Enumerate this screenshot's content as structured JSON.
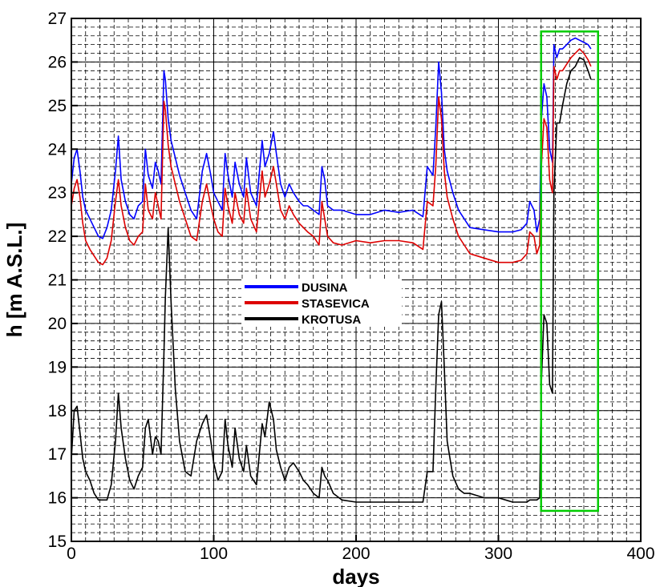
{
  "chart_data": {
    "type": "line",
    "title": "",
    "xlabel": "days",
    "ylabel": "h [m A.S.L.]",
    "xlim": [
      0,
      400
    ],
    "ylim": [
      15,
      27
    ],
    "xticks": [
      0,
      100,
      200,
      300,
      400
    ],
    "yticks": [
      15,
      16,
      17,
      18,
      19,
      20,
      21,
      22,
      23,
      24,
      25,
      26,
      27
    ],
    "x_minor_step": 10,
    "y_minor_step": 0.2,
    "grid": true,
    "legend_position": "center-left",
    "highlight_box": {
      "x": [
        330,
        370
      ],
      "y": [
        15.7,
        26.7
      ],
      "color": "#00cc00"
    },
    "series": [
      {
        "name": "DUSINA",
        "color": "#0000ff",
        "x": [
          0,
          2,
          4,
          6,
          8,
          10,
          13,
          16,
          19,
          22,
          25,
          28,
          31,
          33,
          35,
          38,
          41,
          44,
          47,
          50,
          52,
          54,
          57,
          59,
          61,
          63,
          65,
          66,
          68,
          70,
          73,
          76,
          80,
          84,
          88,
          92,
          95,
          98,
          100,
          103,
          106,
          108,
          110,
          113,
          115,
          118,
          121,
          123,
          126,
          130,
          134,
          136,
          139,
          142,
          144,
          147,
          150,
          153,
          156,
          160,
          163,
          166,
          170,
          174,
          176,
          178,
          180,
          184,
          190,
          200,
          210,
          220,
          230,
          240,
          247,
          250,
          254,
          256,
          258,
          260,
          262,
          264,
          268,
          272,
          276,
          280,
          290,
          300,
          310,
          316,
          320,
          322,
          325,
          327,
          329,
          330,
          332,
          334,
          336,
          338,
          339,
          341,
          343,
          345,
          348,
          351,
          354,
          357,
          360,
          363,
          365
        ],
        "values": [
          23.2,
          23.8,
          24.0,
          23.5,
          22.9,
          22.6,
          22.4,
          22.2,
          22.0,
          21.95,
          22.2,
          22.6,
          23.5,
          24.3,
          23.3,
          22.8,
          22.5,
          22.4,
          22.7,
          22.8,
          24.0,
          23.4,
          23.1,
          23.7,
          23.5,
          23.2,
          25.8,
          25.6,
          24.7,
          24.2,
          23.8,
          23.4,
          23.0,
          22.6,
          22.4,
          23.5,
          23.9,
          23.4,
          23.0,
          22.8,
          22.6,
          23.9,
          23.4,
          22.9,
          23.7,
          23.2,
          22.9,
          23.8,
          23.0,
          22.7,
          24.2,
          23.6,
          23.9,
          24.4,
          23.9,
          23.2,
          22.9,
          23.2,
          23.0,
          22.8,
          22.7,
          22.7,
          22.6,
          22.5,
          23.6,
          23.3,
          22.7,
          22.6,
          22.6,
          22.5,
          22.5,
          22.6,
          22.55,
          22.6,
          22.45,
          23.6,
          23.4,
          24.5,
          26.0,
          25.3,
          24.0,
          23.5,
          23.0,
          22.6,
          22.4,
          22.2,
          22.15,
          22.1,
          22.1,
          22.15,
          22.3,
          22.8,
          22.6,
          22.1,
          22.4,
          24.6,
          25.5,
          25.2,
          24.0,
          23.7,
          26.4,
          26.1,
          26.3,
          26.3,
          26.4,
          26.5,
          26.55,
          26.5,
          26.45,
          26.4,
          26.3
        ]
      },
      {
        "name": "STASEVICA",
        "color": "#dd0000",
        "x": [
          0,
          2,
          4,
          6,
          8,
          10,
          13,
          16,
          19,
          22,
          25,
          28,
          31,
          33,
          35,
          38,
          41,
          44,
          47,
          50,
          52,
          54,
          57,
          59,
          61,
          63,
          65,
          66,
          68,
          70,
          73,
          76,
          80,
          84,
          88,
          92,
          95,
          98,
          100,
          103,
          106,
          108,
          110,
          113,
          115,
          118,
          121,
          123,
          126,
          130,
          134,
          136,
          139,
          142,
          144,
          147,
          150,
          153,
          156,
          160,
          163,
          166,
          170,
          174,
          176,
          178,
          180,
          184,
          190,
          200,
          210,
          220,
          230,
          240,
          247,
          250,
          254,
          256,
          258,
          260,
          262,
          264,
          268,
          272,
          276,
          280,
          290,
          300,
          310,
          316,
          320,
          322,
          325,
          327,
          329,
          330,
          332,
          334,
          336,
          338,
          339,
          341,
          343,
          345,
          348,
          351,
          354,
          357,
          360,
          363,
          365
        ],
        "values": [
          22.7,
          23.1,
          23.3,
          22.9,
          22.3,
          21.9,
          21.7,
          21.55,
          21.4,
          21.35,
          21.5,
          21.9,
          22.8,
          23.3,
          22.7,
          22.2,
          21.9,
          21.8,
          22.0,
          22.1,
          23.2,
          22.6,
          22.4,
          23.0,
          22.7,
          22.4,
          25.1,
          24.9,
          24.1,
          23.6,
          23.2,
          22.8,
          22.4,
          22.0,
          21.9,
          22.8,
          23.2,
          22.7,
          22.4,
          22.1,
          22.0,
          23.1,
          22.7,
          22.3,
          23.0,
          22.5,
          22.3,
          23.1,
          22.4,
          22.1,
          23.5,
          22.9,
          23.2,
          23.6,
          23.2,
          22.6,
          22.4,
          22.7,
          22.5,
          22.3,
          22.2,
          22.1,
          22.0,
          21.8,
          22.8,
          22.4,
          22.0,
          21.85,
          21.8,
          21.9,
          21.85,
          21.9,
          21.9,
          21.85,
          21.7,
          22.8,
          22.7,
          23.6,
          25.2,
          24.7,
          23.5,
          22.9,
          22.4,
          22.0,
          21.8,
          21.6,
          21.5,
          21.4,
          21.4,
          21.45,
          21.6,
          22.1,
          22.0,
          21.6,
          21.8,
          23.5,
          24.7,
          24.5,
          23.3,
          23.0,
          25.9,
          25.6,
          25.8,
          25.8,
          25.95,
          26.1,
          26.2,
          26.3,
          26.2,
          26.05,
          25.9
        ]
      },
      {
        "name": "KROTUSA",
        "color": "#000000",
        "x": [
          0,
          2,
          4,
          6,
          8,
          10,
          13,
          16,
          19,
          22,
          25,
          28,
          31,
          33,
          35,
          38,
          41,
          44,
          47,
          50,
          52,
          54,
          57,
          59,
          61,
          63,
          65,
          66,
          68,
          70,
          73,
          76,
          80,
          84,
          88,
          92,
          95,
          98,
          100,
          103,
          106,
          108,
          110,
          113,
          115,
          118,
          121,
          123,
          126,
          130,
          134,
          136,
          139,
          142,
          144,
          147,
          150,
          153,
          156,
          160,
          163,
          166,
          170,
          174,
          176,
          178,
          180,
          184,
          190,
          200,
          210,
          220,
          230,
          240,
          247,
          250,
          254,
          256,
          258,
          260,
          262,
          264,
          268,
          272,
          276,
          280,
          290,
          300,
          310,
          316,
          320,
          322,
          325,
          327,
          329,
          330,
          332,
          334,
          336,
          338,
          339,
          341,
          343,
          345,
          348,
          351,
          354,
          357,
          360,
          363,
          365
        ],
        "values": [
          16.9,
          18.0,
          18.1,
          17.5,
          16.9,
          16.6,
          16.4,
          16.1,
          15.95,
          15.95,
          15.95,
          16.3,
          17.3,
          18.4,
          17.6,
          16.9,
          16.4,
          16.2,
          16.5,
          16.7,
          17.6,
          17.8,
          17.0,
          17.4,
          17.3,
          17.0,
          19.3,
          20.6,
          22.2,
          20.5,
          18.5,
          17.3,
          16.6,
          16.5,
          17.3,
          17.7,
          17.9,
          17.3,
          16.8,
          16.4,
          16.6,
          17.8,
          17.2,
          16.7,
          17.6,
          16.9,
          16.6,
          17.2,
          16.5,
          16.3,
          17.7,
          17.4,
          18.2,
          17.8,
          17.1,
          16.7,
          16.4,
          16.7,
          16.8,
          16.6,
          16.4,
          16.3,
          16.1,
          16.0,
          16.7,
          16.5,
          16.4,
          16.1,
          15.95,
          15.9,
          15.9,
          15.9,
          15.9,
          15.9,
          15.9,
          16.6,
          16.6,
          18.5,
          20.2,
          20.5,
          19.0,
          17.3,
          16.5,
          16.2,
          16.1,
          16.1,
          16.0,
          16.0,
          15.9,
          15.9,
          15.9,
          15.95,
          15.95,
          15.95,
          16.0,
          18.5,
          20.2,
          20.0,
          18.6,
          18.4,
          23.0,
          24.6,
          24.6,
          25.0,
          25.5,
          25.8,
          25.9,
          26.1,
          26.05,
          25.8,
          25.6
        ]
      }
    ]
  }
}
